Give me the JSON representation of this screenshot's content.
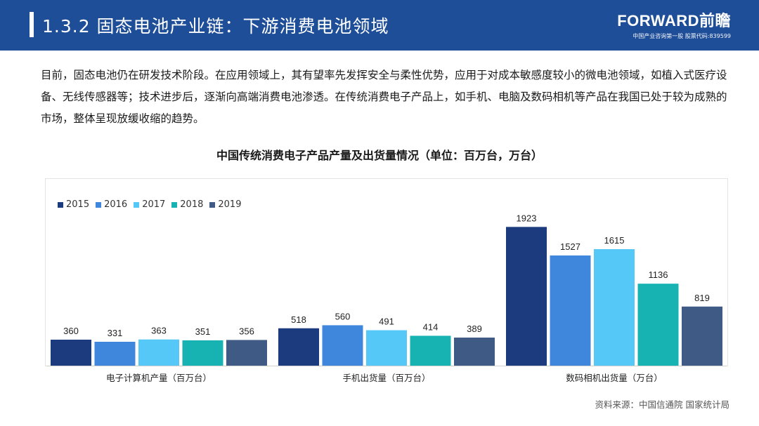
{
  "header": {
    "title": "1.3.2  固态电池产业链：下游消费电池领域",
    "brand_name": "FORWARD前瞻",
    "brand_sub": "中国产业咨询第一股  股票代码:839599"
  },
  "body_text": "目前，固态电池仍在研发技术阶段。在应用领域上，其有望率先发挥安全与柔性优势，应用于对成本敏感度较小的微电池领域，如植入式医疗设备、无线传感器等；技术进步后，逐渐向高端消费电池渗透。在传统消费电子产品上，如手机、电脑及数码相机等产品在我国已处于较为成熟的市场，整体呈现放缓收缩的趋势。",
  "chart_data": {
    "type": "bar",
    "title": "中国传统消费电子产品产量及出货量情况（单位：百万台，万台）",
    "categories": [
      "电子计算机产量（百万台）",
      "手机出货量（百万台）",
      "数码相机出货量（万台）"
    ],
    "series": [
      {
        "name": "2015",
        "color": "#1c3a7e",
        "values": [
          360,
          518,
          1923
        ]
      },
      {
        "name": "2016",
        "color": "#3f86dd",
        "values": [
          331,
          560,
          1527
        ]
      },
      {
        "name": "2017",
        "color": "#55c8f7",
        "values": [
          363,
          491,
          1615
        ]
      },
      {
        "name": "2018",
        "color": "#17b3b3",
        "values": [
          351,
          414,
          1136
        ]
      },
      {
        "name": "2019",
        "color": "#3f5b85",
        "values": [
          356,
          389,
          819
        ]
      }
    ],
    "ylim": [
      0,
      2150
    ],
    "grid": false,
    "legend": "top-left",
    "xlabel": "",
    "ylabel": ""
  },
  "source": "资料来源：中国信通院 国家统计局"
}
